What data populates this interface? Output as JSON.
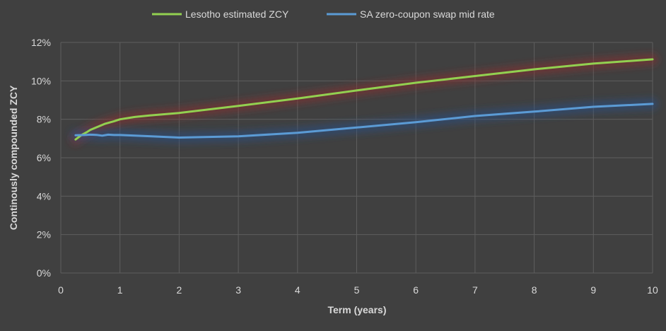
{
  "chart_data": {
    "type": "line",
    "xlabel": "Term (years)",
    "ylabel": "Continously compounded ZCY",
    "xlim": [
      0,
      10
    ],
    "ylim": [
      0,
      0.12
    ],
    "x_ticks": [
      "0",
      "1",
      "2",
      "3",
      "4",
      "5",
      "6",
      "7",
      "8",
      "9",
      "10"
    ],
    "y_ticks": [
      "0%",
      "2%",
      "4%",
      "6%",
      "8%",
      "10%",
      "12%"
    ],
    "grid": true,
    "legend_position": "top",
    "series": [
      {
        "name": "Lesotho estimated ZCY",
        "color": "#92d050",
        "points": [
          [
            0.25,
            0.0695
          ],
          [
            0.35,
            0.0718
          ],
          [
            0.45,
            0.0735
          ],
          [
            0.5,
            0.0745
          ],
          [
            0.6,
            0.0758
          ],
          [
            0.75,
            0.0777
          ],
          [
            0.9,
            0.079
          ],
          [
            1.0,
            0.08
          ],
          [
            1.25,
            0.0812
          ],
          [
            1.5,
            0.082
          ],
          [
            2.0,
            0.0833
          ],
          [
            3.0,
            0.087
          ],
          [
            4.0,
            0.0908
          ],
          [
            5.0,
            0.095
          ],
          [
            6.0,
            0.099
          ],
          [
            7.0,
            0.1025
          ],
          [
            8.0,
            0.106
          ],
          [
            9.0,
            0.109
          ],
          [
            10.0,
            0.1112
          ]
        ]
      },
      {
        "name": "SA zero-coupon swap mid rate",
        "color": "#5b9bd5",
        "points": [
          [
            0.25,
            0.0717
          ],
          [
            0.4,
            0.0718
          ],
          [
            0.5,
            0.072
          ],
          [
            0.6,
            0.0719
          ],
          [
            0.7,
            0.0715
          ],
          [
            0.8,
            0.072
          ],
          [
            0.9,
            0.0718
          ],
          [
            1.0,
            0.0718
          ],
          [
            1.5,
            0.0712
          ],
          [
            2.0,
            0.0705
          ],
          [
            3.0,
            0.0711
          ],
          [
            4.0,
            0.073
          ],
          [
            5.0,
            0.0757
          ],
          [
            6.0,
            0.0785
          ],
          [
            7.0,
            0.0817
          ],
          [
            8.0,
            0.084
          ],
          [
            9.0,
            0.0865
          ],
          [
            10.0,
            0.088
          ]
        ]
      }
    ]
  }
}
